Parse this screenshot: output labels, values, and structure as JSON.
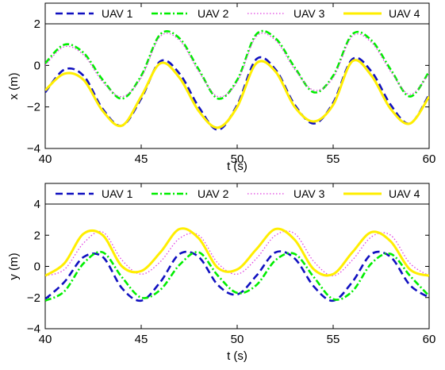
{
  "chart_data": [
    {
      "type": "line",
      "xlabel": "t (s)",
      "ylabel": "x (m)",
      "xlim": [
        40,
        60
      ],
      "ylim": [
        -4,
        2
      ],
      "xticks": [
        "40",
        "45",
        "50",
        "55",
        "60"
      ],
      "yticks": [
        "−4",
        "−2",
        "0",
        "2"
      ],
      "grid": false,
      "legend_position": "top (horizontal)",
      "series": [
        {
          "name": "UAV 1",
          "color": "#1010c0",
          "style": "dashed",
          "x": [
            40,
            41,
            42,
            43,
            44,
            45,
            46,
            47,
            48,
            49,
            50,
            51,
            52,
            53,
            54,
            55,
            56,
            57,
            58,
            59,
            60
          ],
          "y": [
            -1.3,
            -0.2,
            -0.5,
            -2.1,
            -2.9,
            -1.6,
            0.2,
            -0.4,
            -2.0,
            -3.1,
            -1.9,
            0.3,
            -0.2,
            -1.9,
            -2.8,
            -1.8,
            0.3,
            -0.3,
            -1.9,
            -2.8,
            -1.4
          ]
        },
        {
          "name": "UAV 2",
          "color": "#00ee00",
          "style": "dash-dot",
          "x": [
            40,
            41,
            42,
            43,
            44,
            45,
            46,
            47,
            48,
            49,
            50,
            51,
            52,
            53,
            54,
            55,
            56,
            57,
            58,
            59,
            60
          ],
          "y": [
            0.1,
            1.0,
            0.6,
            -0.7,
            -1.6,
            -0.5,
            1.5,
            1.3,
            -0.2,
            -1.6,
            -0.7,
            1.5,
            1.3,
            -0.1,
            -1.3,
            -0.5,
            1.5,
            1.2,
            -0.2,
            -1.5,
            -0.3
          ]
        },
        {
          "name": "UAV 3",
          "color": "#e040e0",
          "style": "dotted",
          "x": [
            40,
            41,
            42,
            43,
            44,
            45,
            46,
            47,
            48,
            49,
            50,
            51,
            52,
            53,
            54,
            55,
            56,
            57,
            58,
            59,
            60
          ],
          "y": [
            0.0,
            0.9,
            0.5,
            -0.8,
            -1.5,
            -0.6,
            1.4,
            1.2,
            -0.3,
            -1.5,
            -0.8,
            1.4,
            1.2,
            -0.2,
            -1.2,
            -0.6,
            1.4,
            1.1,
            -0.3,
            -1.4,
            -0.4
          ]
        },
        {
          "name": "UAV 4",
          "color": "#ffee00",
          "style": "solid",
          "x": [
            40,
            41,
            42,
            43,
            44,
            45,
            46,
            47,
            48,
            49,
            50,
            51,
            52,
            53,
            54,
            55,
            56,
            57,
            58,
            59,
            60
          ],
          "y": [
            -1.2,
            -0.4,
            -0.7,
            -2.2,
            -2.9,
            -1.5,
            0.1,
            -0.6,
            -2.2,
            -3.0,
            -2.0,
            0.1,
            -0.3,
            -2.0,
            -2.7,
            -1.9,
            0.2,
            -0.5,
            -2.1,
            -2.8,
            -1.5
          ]
        }
      ]
    },
    {
      "type": "line",
      "xlabel": "t (s)",
      "ylabel": "y (m)",
      "xlim": [
        40,
        60
      ],
      "ylim": [
        -4,
        4
      ],
      "xticks": [
        "40",
        "45",
        "50",
        "55",
        "60"
      ],
      "yticks": [
        "−4",
        "−2",
        "0",
        "2",
        "4"
      ],
      "grid": false,
      "legend_position": "top (horizontal)",
      "series": [
        {
          "name": "UAV 1",
          "color": "#1010c0",
          "style": "dashed",
          "x": [
            40,
            41,
            42,
            43,
            44,
            45,
            46,
            47,
            48,
            49,
            50,
            51,
            52,
            53,
            54,
            55,
            56,
            57,
            58,
            59,
            60
          ],
          "y": [
            -2.1,
            -1.0,
            0.6,
            0.6,
            -1.4,
            -2.2,
            -1.0,
            0.8,
            0.6,
            -1.2,
            -1.8,
            -0.6,
            0.9,
            0.5,
            -1.3,
            -2.2,
            -1.0,
            0.8,
            0.6,
            -1.2,
            -2.0
          ]
        },
        {
          "name": "UAV 2",
          "color": "#00ee00",
          "style": "dash-dot",
          "x": [
            40,
            41,
            42,
            43,
            44,
            45,
            46,
            47,
            48,
            49,
            50,
            51,
            52,
            53,
            54,
            55,
            56,
            57,
            58,
            59,
            60
          ],
          "y": [
            -2.2,
            -1.6,
            0.2,
            0.9,
            -0.7,
            -2.0,
            -1.5,
            0.1,
            0.9,
            -0.6,
            -1.7,
            -1.2,
            0.4,
            0.8,
            -0.7,
            -2.1,
            -1.6,
            0.2,
            0.8,
            -0.6,
            -1.9
          ]
        },
        {
          "name": "UAV 3",
          "color": "#e040e0",
          "style": "dotted",
          "x": [
            40,
            41,
            42,
            43,
            44,
            45,
            46,
            47,
            48,
            49,
            50,
            51,
            52,
            53,
            54,
            55,
            56,
            57,
            58,
            59,
            60
          ],
          "y": [
            -0.6,
            -0.2,
            1.5,
            2.2,
            0.4,
            -0.5,
            0.3,
            1.8,
            2.0,
            0.2,
            -0.5,
            0.5,
            2.0,
            2.1,
            0.3,
            -0.6,
            0.4,
            1.9,
            2.0,
            0.2,
            -0.6
          ]
        },
        {
          "name": "UAV 4",
          "color": "#ffee00",
          "style": "solid",
          "x": [
            40,
            41,
            42,
            43,
            44,
            45,
            46,
            47,
            48,
            49,
            50,
            51,
            52,
            53,
            54,
            55,
            56,
            57,
            58,
            59,
            60
          ],
          "y": [
            -0.6,
            0.2,
            2.1,
            2.0,
            0.0,
            -0.3,
            0.9,
            2.4,
            1.8,
            -0.1,
            -0.2,
            1.1,
            2.4,
            1.7,
            -0.2,
            -0.5,
            0.9,
            2.2,
            1.6,
            -0.2,
            -0.6
          ]
        }
      ]
    }
  ]
}
